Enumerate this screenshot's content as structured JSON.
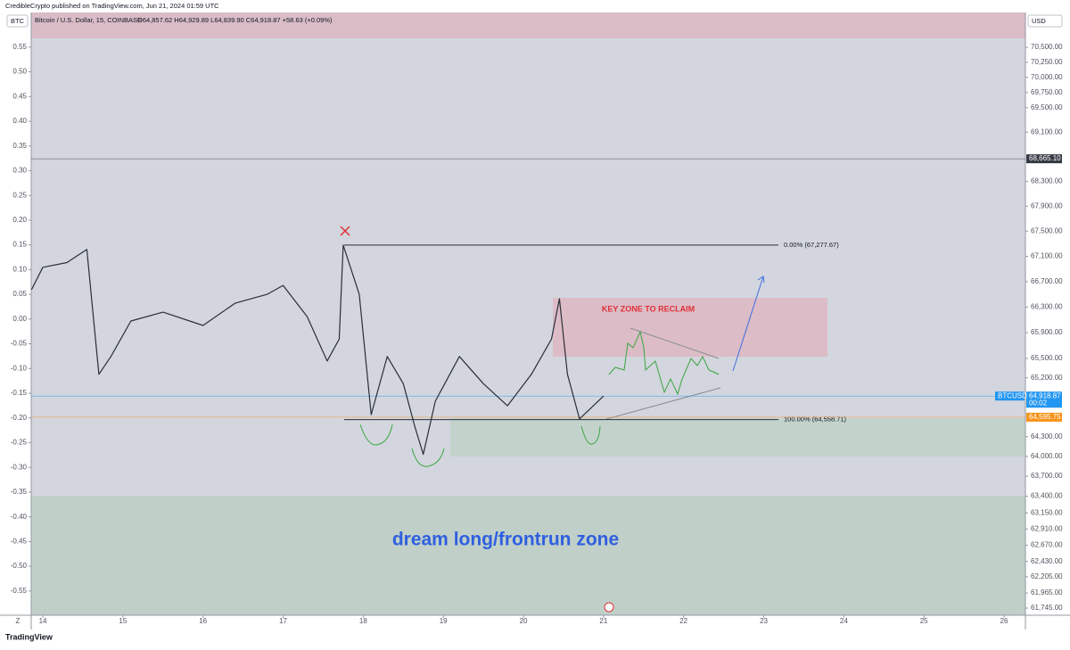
{
  "header": {
    "published": "CredibleCrypto published on TradingView.com, Jun 21, 2024 01:59 UTC",
    "footer": "TradingView"
  },
  "chart_data": {
    "type": "line",
    "symbol_badge": "BTC",
    "currency_badge": "USD",
    "instrument": "Bitcoin / U.S. Dollar, 15, COINBASE",
    "ohlc": "O64,857.62 H64,929.89 L64,839.90 C64,918.87 +58.63 (+0.09%)",
    "percent_axis_label": "Z",
    "log_scale": true,
    "x": [
      13.86,
      14.0,
      14.3,
      14.55,
      14.7,
      14.85,
      15.1,
      15.5,
      16.0,
      16.4,
      16.8,
      17.0,
      17.3,
      17.55,
      17.7,
      17.75,
      17.95,
      18.1,
      18.3,
      18.5,
      18.65,
      18.75,
      18.9,
      19.2,
      19.5,
      19.8,
      20.1,
      20.35,
      20.45,
      20.55,
      20.7,
      21.0
    ],
    "series": [
      {
        "name": "BTCUSD",
        "color": "#2a2e39",
        "values": [
          66573,
          66926,
          67000,
          67208,
          65254,
          65530,
          66082,
          66220,
          66012,
          66360,
          66500,
          66640,
          66150,
          65460,
          65800,
          67277.67,
          66500,
          64635,
          65530,
          65110,
          64430,
          64030,
          64840,
          65530,
          65110,
          64770,
          65254,
          65800,
          66430,
          65254,
          64570,
          64918.87
        ]
      }
    ],
    "xlim": [
      13.855,
      26.267
    ],
    "xticks": [
      14,
      15,
      16,
      17,
      18,
      19,
      20,
      21,
      22,
      23,
      24,
      25,
      26
    ],
    "ylim": [
      61641,
      71082
    ],
    "yticks": [
      {
        "value": 70500,
        "label": "70,500.00"
      },
      {
        "value": 70250,
        "label": "70,250.00"
      },
      {
        "value": 70000,
        "label": "70,000.00"
      },
      {
        "value": 69750,
        "label": "69,750.00"
      },
      {
        "value": 69500,
        "label": "69,500.00"
      },
      {
        "value": 69100,
        "label": "69,100.00"
      },
      {
        "value": 68300,
        "label": "68,300.00"
      },
      {
        "value": 67900,
        "label": "67,900.00"
      },
      {
        "value": 67500,
        "label": "67,500.00"
      },
      {
        "value": 67100,
        "label": "67,100.00"
      },
      {
        "value": 66700,
        "label": "66,700.00"
      },
      {
        "value": 66300,
        "label": "66,300.00"
      },
      {
        "value": 65900,
        "label": "65,900.00"
      },
      {
        "value": 65500,
        "label": "65,500.00"
      },
      {
        "value": 65200,
        "label": "65,200.00"
      },
      {
        "value": 64300,
        "label": "64,300.00"
      },
      {
        "value": 64000,
        "label": "64,000.00"
      },
      {
        "value": 63700,
        "label": "63,700.00"
      },
      {
        "value": 63400,
        "label": "63,400.00"
      },
      {
        "value": 63150,
        "label": "63,150.00"
      },
      {
        "value": 62910,
        "label": "62,910.00"
      },
      {
        "value": 62670,
        "label": "62,670.00"
      },
      {
        "value": 62430,
        "label": "62,430.00"
      },
      {
        "value": 62205,
        "label": "62,205.00"
      },
      {
        "value": 61965,
        "label": "61,965.00"
      },
      {
        "value": 61745,
        "label": "61,745.00"
      }
    ],
    "y2lim": [
      -0.599,
      0.62
    ],
    "y2ticks": [
      0.55,
      {
        "value": 0.5,
        "label": "0.50"
      },
      0.45,
      {
        "value": 0.4,
        "label": "0.40"
      },
      0.35,
      {
        "value": 0.3,
        "label": "0.30"
      },
      0.25,
      {
        "value": 0.2,
        "label": "0.20"
      },
      0.15,
      {
        "value": 0.1,
        "label": "0.10"
      },
      0.05,
      {
        "value": 0,
        "label": "0.00"
      },
      -0.05,
      {
        "value": -0.1,
        "label": "-0.10"
      },
      -0.15,
      {
        "value": -0.2,
        "label": "-0.20"
      },
      -0.25,
      {
        "value": -0.3,
        "label": "-0.30"
      },
      -0.35,
      {
        "value": -0.4,
        "label": "-0.40"
      },
      -0.45,
      {
        "value": -0.5,
        "label": "-0.50"
      },
      -0.55
    ],
    "price_labels": [
      {
        "value": 68665.1,
        "label": "68,665.10",
        "color": "#363a45"
      },
      {
        "value": 64918.87,
        "label": "64,918.87",
        "color": "#2196f3",
        "symbol": "BTCUSD",
        "countdown": "00:02"
      },
      {
        "value": 64595.75,
        "label": "64,595.75",
        "color": "#f7931a"
      }
    ],
    "fib_levels": [
      {
        "value": 67277.67,
        "label": "0.00% (67,277.67)"
      },
      {
        "value": 64558.71,
        "label": "100.00% (64,558.71)"
      }
    ],
    "annotations": [
      "KEY ZONE TO RECLAIM",
      "dream long/frontrun zone"
    ]
  }
}
